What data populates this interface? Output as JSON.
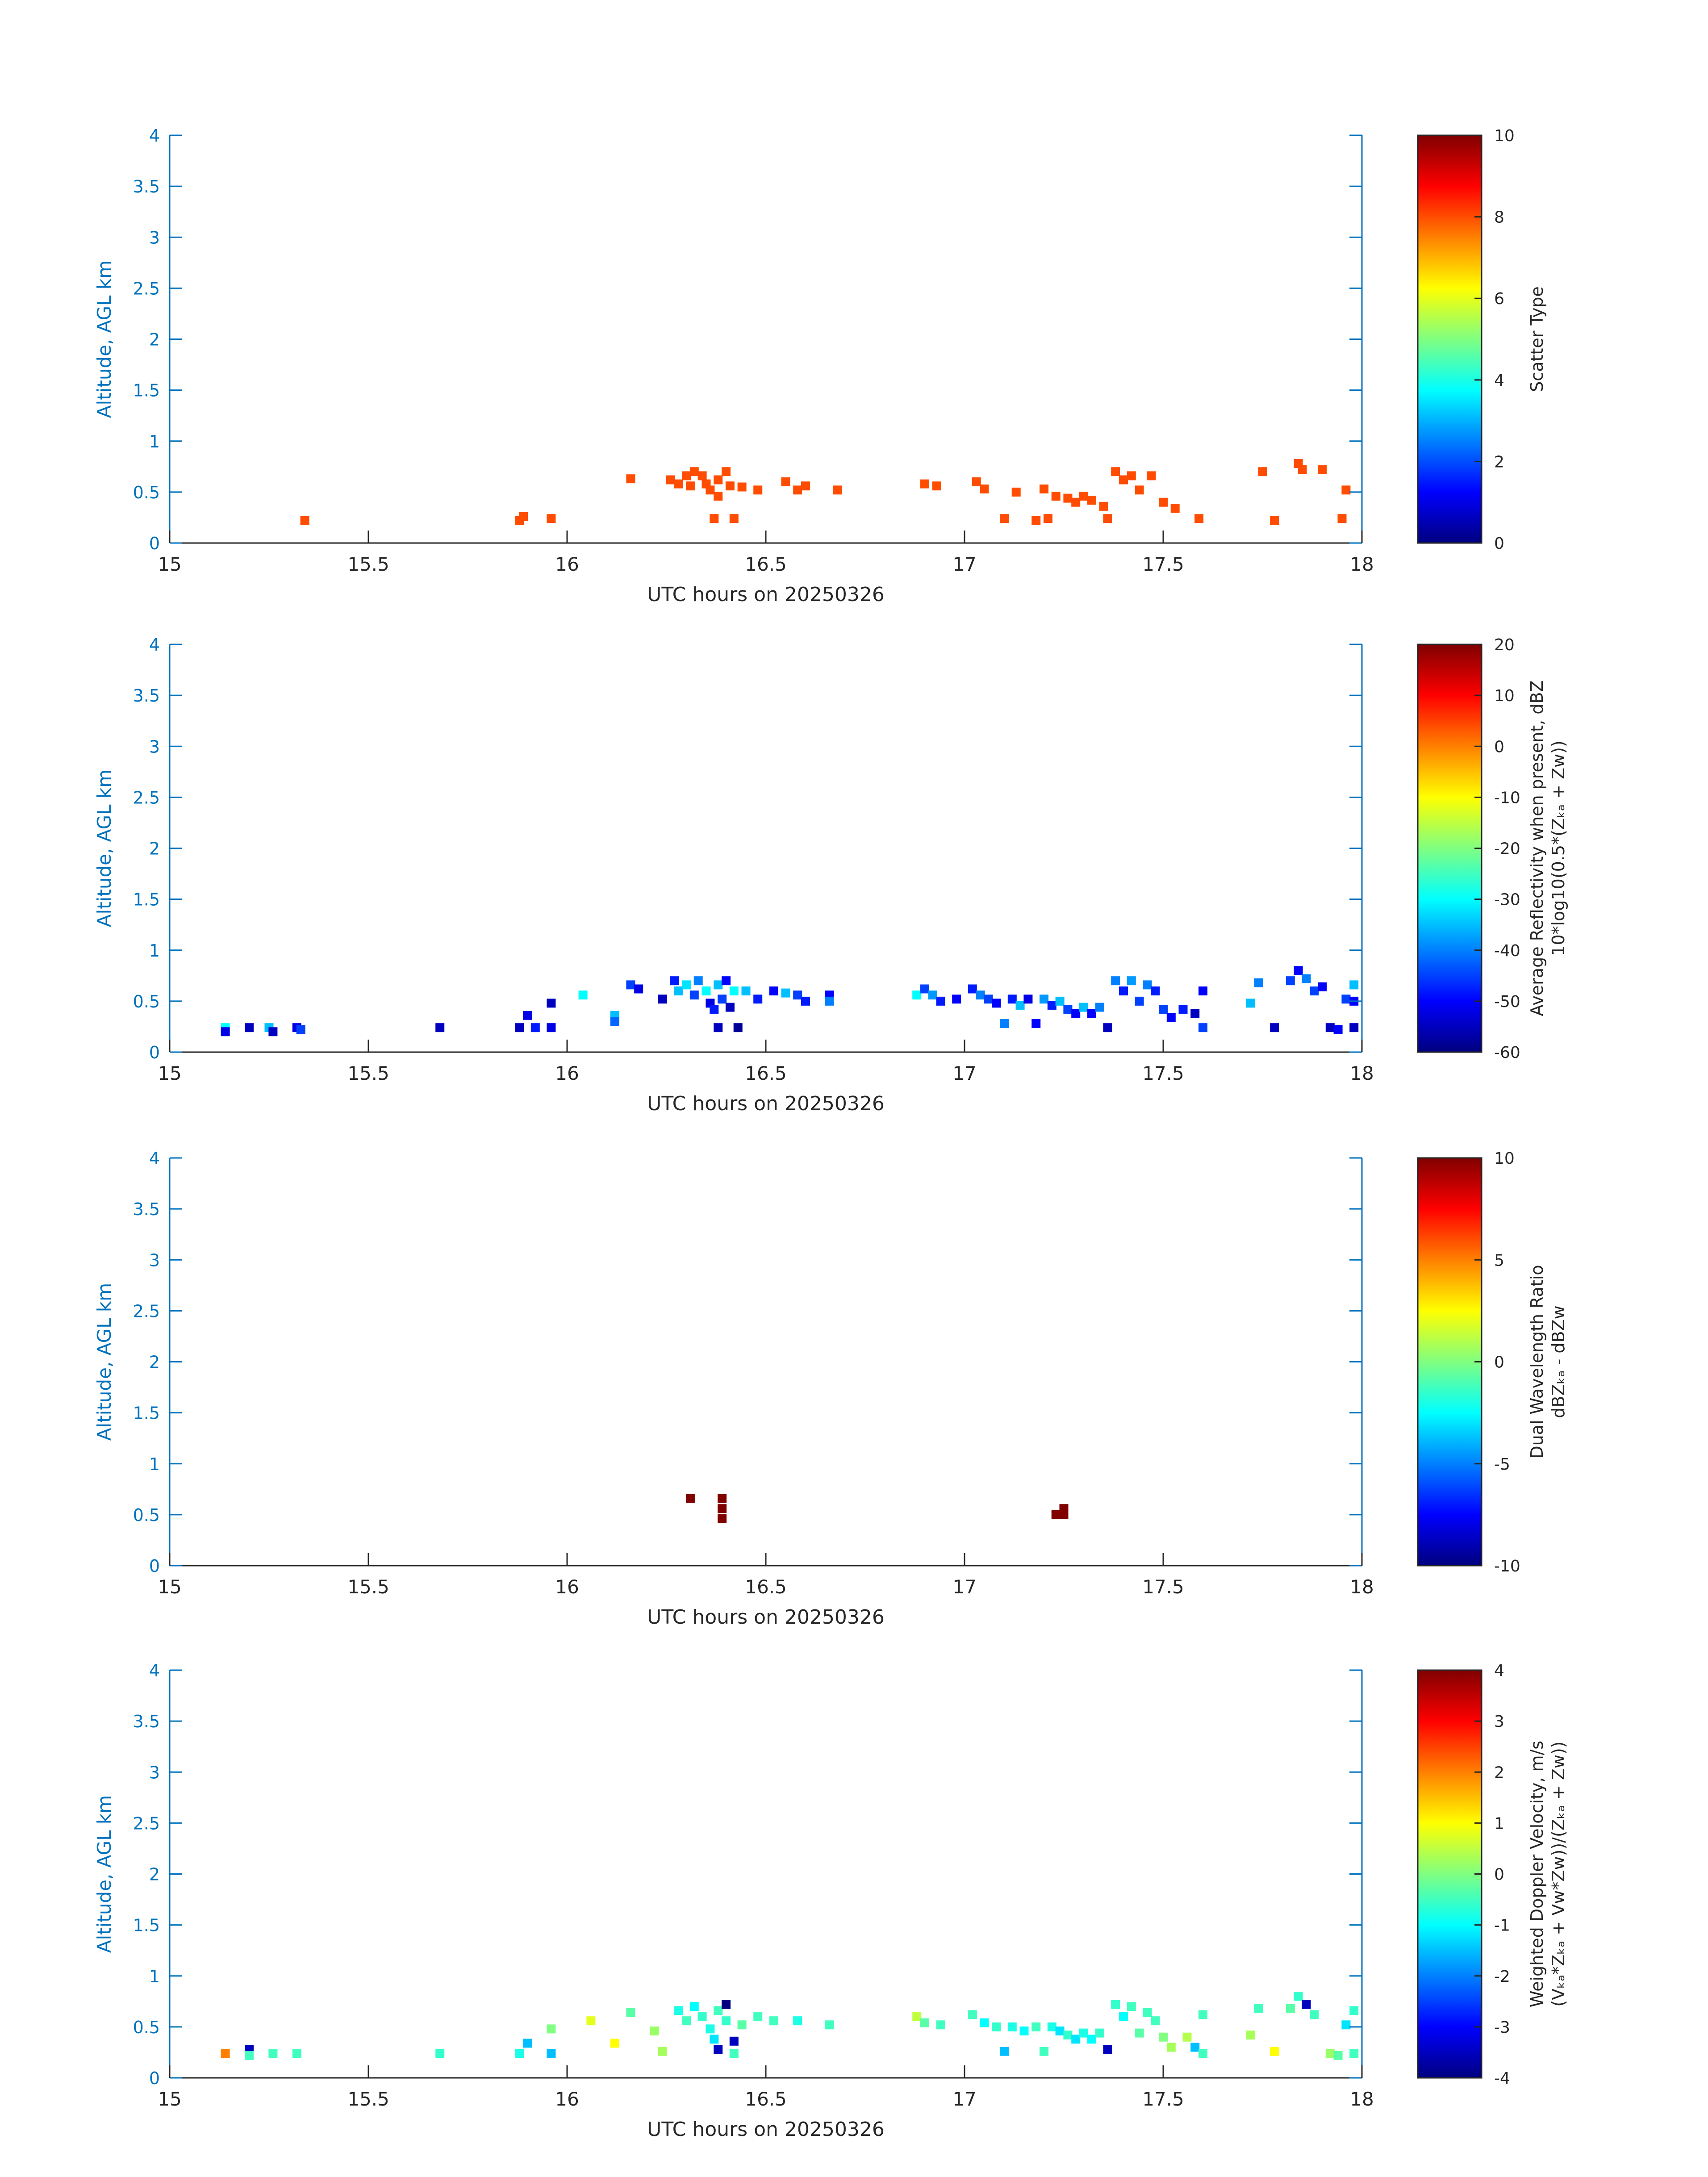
{
  "chart_data": [
    {
      "type": "heatmap",
      "title": "",
      "xlabel": "UTC hours on 20250326",
      "ylabel": "Altitude, AGL km",
      "xlim": [
        15,
        18
      ],
      "ylim": [
        0,
        4
      ],
      "xticks": [
        "15",
        "15.5",
        "16",
        "16.5",
        "17",
        "17.5",
        "18"
      ],
      "yticks": [
        "0",
        "0.5",
        "1",
        "1.5",
        "2",
        "2.5",
        "3",
        "3.5",
        "4"
      ],
      "colorbar": {
        "label_lines": [
          "Scatter Type"
        ],
        "clim": [
          0,
          10
        ],
        "ticks": [
          "0",
          "2",
          "4",
          "6",
          "8",
          "10"
        ]
      },
      "cells": [
        [
          15.34,
          0.22,
          8
        ],
        [
          15.88,
          0.22,
          8
        ],
        [
          15.89,
          0.26,
          8
        ],
        [
          15.96,
          0.24,
          8
        ],
        [
          16.16,
          0.63,
          8
        ],
        [
          16.26,
          0.62,
          8
        ],
        [
          16.28,
          0.58,
          8
        ],
        [
          16.3,
          0.66,
          8
        ],
        [
          16.31,
          0.56,
          8
        ],
        [
          16.32,
          0.7,
          8
        ],
        [
          16.34,
          0.66,
          8
        ],
        [
          16.35,
          0.58,
          8
        ],
        [
          16.36,
          0.52,
          8
        ],
        [
          16.37,
          0.24,
          8
        ],
        [
          16.38,
          0.62,
          8
        ],
        [
          16.38,
          0.46,
          8
        ],
        [
          16.4,
          0.7,
          8
        ],
        [
          16.41,
          0.56,
          8
        ],
        [
          16.42,
          0.24,
          8
        ],
        [
          16.44,
          0.55,
          8
        ],
        [
          16.48,
          0.52,
          8
        ],
        [
          16.55,
          0.6,
          8
        ],
        [
          16.58,
          0.52,
          8
        ],
        [
          16.6,
          0.56,
          8
        ],
        [
          16.68,
          0.52,
          8
        ],
        [
          16.9,
          0.58,
          8
        ],
        [
          16.93,
          0.56,
          8
        ],
        [
          17.03,
          0.6,
          8
        ],
        [
          17.05,
          0.53,
          8
        ],
        [
          17.1,
          0.24,
          8
        ],
        [
          17.13,
          0.5,
          8
        ],
        [
          17.18,
          0.22,
          8
        ],
        [
          17.21,
          0.24,
          8
        ],
        [
          17.2,
          0.53,
          8
        ],
        [
          17.23,
          0.46,
          8
        ],
        [
          17.26,
          0.44,
          8
        ],
        [
          17.28,
          0.4,
          8
        ],
        [
          17.3,
          0.46,
          8
        ],
        [
          17.32,
          0.42,
          8
        ],
        [
          17.35,
          0.36,
          8
        ],
        [
          17.36,
          0.24,
          8
        ],
        [
          17.38,
          0.7,
          8
        ],
        [
          17.4,
          0.62,
          8
        ],
        [
          17.42,
          0.66,
          8
        ],
        [
          17.44,
          0.52,
          8
        ],
        [
          17.47,
          0.66,
          8
        ],
        [
          17.5,
          0.4,
          8
        ],
        [
          17.53,
          0.34,
          8
        ],
        [
          17.59,
          0.24,
          8
        ],
        [
          17.75,
          0.7,
          8
        ],
        [
          17.78,
          0.22,
          8
        ],
        [
          17.84,
          0.78,
          8
        ],
        [
          17.85,
          0.72,
          8
        ],
        [
          17.9,
          0.72,
          8
        ],
        [
          17.96,
          0.52,
          8
        ],
        [
          17.95,
          0.24,
          8
        ]
      ]
    },
    {
      "type": "heatmap",
      "title": "",
      "xlabel": "UTC hours on 20250326",
      "ylabel": "Altitude, AGL km",
      "xlim": [
        15,
        18
      ],
      "ylim": [
        0,
        4
      ],
      "xticks": [
        "15",
        "15.5",
        "16",
        "16.5",
        "17",
        "17.5",
        "18"
      ],
      "yticks": [
        "0",
        "0.5",
        "1",
        "1.5",
        "2",
        "2.5",
        "3",
        "3.5",
        "4"
      ],
      "colorbar": {
        "label_lines": [
          "Average Reflectivity when present, dBZ",
          "10*log10(0.5*(Zₖₐ + Zw))"
        ],
        "clim": [
          -60,
          20
        ],
        "ticks": [
          "-60",
          "-50",
          "-40",
          "-30",
          "-20",
          "-10",
          "0",
          "10",
          "20"
        ]
      },
      "cells": [
        [
          15.14,
          0.24,
          -30
        ],
        [
          15.14,
          0.2,
          -52
        ],
        [
          15.2,
          0.24,
          -55
        ],
        [
          15.25,
          0.24,
          -35
        ],
        [
          15.26,
          0.2,
          -55
        ],
        [
          15.32,
          0.24,
          -52
        ],
        [
          15.33,
          0.22,
          -45
        ],
        [
          15.68,
          0.24,
          -55
        ],
        [
          15.88,
          0.24,
          -55
        ],
        [
          15.9,
          0.36,
          -52
        ],
        [
          15.92,
          0.24,
          -48
        ],
        [
          15.96,
          0.24,
          -52
        ],
        [
          15.96,
          0.48,
          -55
        ],
        [
          16.04,
          0.56,
          -30
        ],
        [
          16.12,
          0.36,
          -35
        ],
        [
          16.12,
          0.3,
          -42
        ],
        [
          16.16,
          0.66,
          -45
        ],
        [
          16.18,
          0.62,
          -52
        ],
        [
          16.24,
          0.52,
          -55
        ],
        [
          16.27,
          0.7,
          -48
        ],
        [
          16.28,
          0.6,
          -35
        ],
        [
          16.3,
          0.66,
          -32
        ],
        [
          16.32,
          0.56,
          -45
        ],
        [
          16.33,
          0.7,
          -40
        ],
        [
          16.35,
          0.6,
          -30
        ],
        [
          16.36,
          0.48,
          -52
        ],
        [
          16.37,
          0.42,
          -48
        ],
        [
          16.38,
          0.66,
          -35
        ],
        [
          16.39,
          0.52,
          -45
        ],
        [
          16.4,
          0.7,
          -50
        ],
        [
          16.41,
          0.44,
          -55
        ],
        [
          16.42,
          0.6,
          -30
        ],
        [
          16.43,
          0.24,
          -58
        ],
        [
          16.38,
          0.24,
          -55
        ],
        [
          16.45,
          0.6,
          -35
        ],
        [
          16.48,
          0.52,
          -48
        ],
        [
          16.52,
          0.6,
          -50
        ],
        [
          16.55,
          0.58,
          -35
        ],
        [
          16.58,
          0.56,
          -45
        ],
        [
          16.6,
          0.5,
          -48
        ],
        [
          16.66,
          0.56,
          -50
        ],
        [
          16.66,
          0.5,
          -40
        ],
        [
          16.88,
          0.56,
          -30
        ],
        [
          16.9,
          0.62,
          -45
        ],
        [
          16.92,
          0.56,
          -38
        ],
        [
          16.94,
          0.5,
          -48
        ],
        [
          16.98,
          0.52,
          -50
        ],
        [
          17.02,
          0.62,
          -48
        ],
        [
          17.04,
          0.56,
          -40
        ],
        [
          17.06,
          0.52,
          -45
        ],
        [
          17.08,
          0.48,
          -50
        ],
        [
          17.1,
          0.28,
          -40
        ],
        [
          17.12,
          0.52,
          -48
        ],
        [
          17.14,
          0.46,
          -35
        ],
        [
          17.16,
          0.52,
          -52
        ],
        [
          17.18,
          0.28,
          -50
        ],
        [
          17.2,
          0.52,
          -38
        ],
        [
          17.22,
          0.46,
          -48
        ],
        [
          17.24,
          0.5,
          -35
        ],
        [
          17.26,
          0.42,
          -45
        ],
        [
          17.28,
          0.38,
          -50
        ],
        [
          17.3,
          0.44,
          -35
        ],
        [
          17.32,
          0.38,
          -50
        ],
        [
          17.34,
          0.44,
          -40
        ],
        [
          17.36,
          0.24,
          -55
        ],
        [
          17.38,
          0.7,
          -40
        ],
        [
          17.4,
          0.6,
          -48
        ],
        [
          17.42,
          0.7,
          -38
        ],
        [
          17.44,
          0.5,
          -45
        ],
        [
          17.46,
          0.66,
          -40
        ],
        [
          17.48,
          0.6,
          -48
        ],
        [
          17.5,
          0.42,
          -45
        ],
        [
          17.52,
          0.34,
          -50
        ],
        [
          17.55,
          0.42,
          -48
        ],
        [
          17.58,
          0.38,
          -55
        ],
        [
          17.6,
          0.24,
          -45
        ],
        [
          17.6,
          0.6,
          -50
        ],
        [
          17.72,
          0.48,
          -35
        ],
        [
          17.74,
          0.68,
          -40
        ],
        [
          17.78,
          0.24,
          -55
        ],
        [
          17.82,
          0.7,
          -45
        ],
        [
          17.84,
          0.8,
          -50
        ],
        [
          17.86,
          0.72,
          -40
        ],
        [
          17.88,
          0.6,
          -45
        ],
        [
          17.9,
          0.64,
          -50
        ],
        [
          17.92,
          0.24,
          -55
        ],
        [
          17.94,
          0.22,
          -50
        ],
        [
          17.96,
          0.52,
          -45
        ],
        [
          17.98,
          0.66,
          -35
        ],
        [
          17.98,
          0.5,
          -50
        ],
        [
          17.98,
          0.24,
          -55
        ]
      ]
    },
    {
      "type": "heatmap",
      "title": "",
      "xlabel": "UTC hours on 20250326",
      "ylabel": "Altitude, AGL km",
      "xlim": [
        15,
        18
      ],
      "ylim": [
        0,
        4
      ],
      "xticks": [
        "15",
        "15.5",
        "16",
        "16.5",
        "17",
        "17.5",
        "18"
      ],
      "yticks": [
        "0",
        "0.5",
        "1",
        "1.5",
        "2",
        "2.5",
        "3",
        "3.5",
        "4"
      ],
      "colorbar": {
        "label_lines": [
          "Dual Wavelength Ratio",
          "dBZₖₐ - dBZw"
        ],
        "clim": [
          -10,
          10
        ],
        "ticks": [
          "-10",
          "-5",
          "0",
          "5",
          "10"
        ]
      },
      "cells": [
        [
          16.31,
          0.66,
          10
        ],
        [
          16.39,
          0.66,
          10
        ],
        [
          16.39,
          0.56,
          10
        ],
        [
          16.39,
          0.46,
          10
        ],
        [
          17.23,
          0.5,
          10
        ],
        [
          17.25,
          0.56,
          10
        ],
        [
          17.25,
          0.5,
          10
        ]
      ]
    },
    {
      "type": "heatmap",
      "title": "",
      "xlabel": "UTC hours on 20250326",
      "ylabel": "Altitude, AGL km",
      "xlim": [
        15,
        18
      ],
      "ylim": [
        0,
        4
      ],
      "xticks": [
        "15",
        "15.5",
        "16",
        "16.5",
        "17",
        "17.5",
        "18"
      ],
      "yticks": [
        "0",
        "0.5",
        "1",
        "1.5",
        "2",
        "2.5",
        "3",
        "3.5",
        "4"
      ],
      "colorbar": {
        "label_lines": [
          "Weighted Doppler Velocity, m/s",
          "(Vₖₐ*Zₖₐ + Vw*Zw))/(Zₖₐ + Zw))"
        ],
        "clim": [
          -4,
          4
        ],
        "ticks": [
          "-4",
          "-3",
          "-2",
          "-1",
          "0",
          "1",
          "2",
          "3",
          "4"
        ]
      },
      "cells": [
        [
          15.14,
          0.24,
          2
        ],
        [
          15.2,
          0.28,
          -3.5
        ],
        [
          15.2,
          0.22,
          -0.5
        ],
        [
          15.26,
          0.24,
          -0.5
        ],
        [
          15.32,
          0.24,
          -0.5
        ],
        [
          15.68,
          0.24,
          -0.6
        ],
        [
          15.88,
          0.24,
          -0.8
        ],
        [
          15.9,
          0.34,
          -1.5
        ],
        [
          15.96,
          0.24,
          -1.5
        ],
        [
          15.96,
          0.48,
          0
        ],
        [
          16.06,
          0.56,
          0.8
        ],
        [
          16.12,
          0.34,
          1
        ],
        [
          16.16,
          0.64,
          -0.3
        ],
        [
          16.22,
          0.46,
          0.2
        ],
        [
          16.24,
          0.26,
          0.3
        ],
        [
          16.28,
          0.66,
          -0.8
        ],
        [
          16.3,
          0.56,
          -0.5
        ],
        [
          16.32,
          0.7,
          -1
        ],
        [
          16.34,
          0.6,
          -0.6
        ],
        [
          16.36,
          0.48,
          -0.8
        ],
        [
          16.37,
          0.38,
          -1.2
        ],
        [
          16.38,
          0.28,
          -3.5
        ],
        [
          16.38,
          0.66,
          -0.5
        ],
        [
          16.4,
          0.72,
          -4
        ],
        [
          16.4,
          0.56,
          -0.6
        ],
        [
          16.42,
          0.36,
          -3.5
        ],
        [
          16.42,
          0.24,
          -0.5
        ],
        [
          16.44,
          0.52,
          -0.3
        ],
        [
          16.48,
          0.6,
          -0.5
        ],
        [
          16.52,
          0.56,
          -0.5
        ],
        [
          16.58,
          0.56,
          -0.8
        ],
        [
          16.66,
          0.52,
          -0.5
        ],
        [
          16.88,
          0.6,
          0.5
        ],
        [
          16.9,
          0.54,
          -0.3
        ],
        [
          16.94,
          0.52,
          -0.5
        ],
        [
          17.02,
          0.62,
          -0.5
        ],
        [
          17.05,
          0.54,
          -1
        ],
        [
          17.08,
          0.5,
          -0.6
        ],
        [
          17.1,
          0.26,
          -1.5
        ],
        [
          17.12,
          0.5,
          -0.8
        ],
        [
          17.15,
          0.46,
          -1
        ],
        [
          17.18,
          0.5,
          -0.5
        ],
        [
          17.2,
          0.26,
          -0.5
        ],
        [
          17.22,
          0.5,
          -0.8
        ],
        [
          17.24,
          0.46,
          -1.2
        ],
        [
          17.26,
          0.42,
          -0.6
        ],
        [
          17.28,
          0.38,
          -1.2
        ],
        [
          17.3,
          0.44,
          -0.8
        ],
        [
          17.32,
          0.38,
          -1
        ],
        [
          17.34,
          0.44,
          -0.6
        ],
        [
          17.36,
          0.28,
          -3.5
        ],
        [
          17.38,
          0.72,
          -0.6
        ],
        [
          17.4,
          0.6,
          -1
        ],
        [
          17.42,
          0.7,
          -0.5
        ],
        [
          17.44,
          0.44,
          -0.3
        ],
        [
          17.46,
          0.64,
          -0.5
        ],
        [
          17.48,
          0.56,
          -0.5
        ],
        [
          17.5,
          0.4,
          0
        ],
        [
          17.52,
          0.3,
          0.3
        ],
        [
          17.56,
          0.4,
          0.4
        ],
        [
          17.58,
          0.3,
          -1.5
        ],
        [
          17.6,
          0.24,
          -0.5
        ],
        [
          17.6,
          0.62,
          -0.5
        ],
        [
          17.72,
          0.42,
          0.3
        ],
        [
          17.74,
          0.68,
          -0.5
        ],
        [
          17.78,
          0.26,
          1
        ],
        [
          17.82,
          0.68,
          -0.3
        ],
        [
          17.84,
          0.8,
          -0.6
        ],
        [
          17.86,
          0.72,
          -3.5
        ],
        [
          17.88,
          0.62,
          -0.5
        ],
        [
          17.92,
          0.24,
          0.2
        ],
        [
          17.94,
          0.22,
          -0.3
        ],
        [
          17.96,
          0.52,
          -1.2
        ],
        [
          17.98,
          0.66,
          -0.6
        ],
        [
          17.98,
          0.24,
          -0.5
        ]
      ]
    }
  ]
}
